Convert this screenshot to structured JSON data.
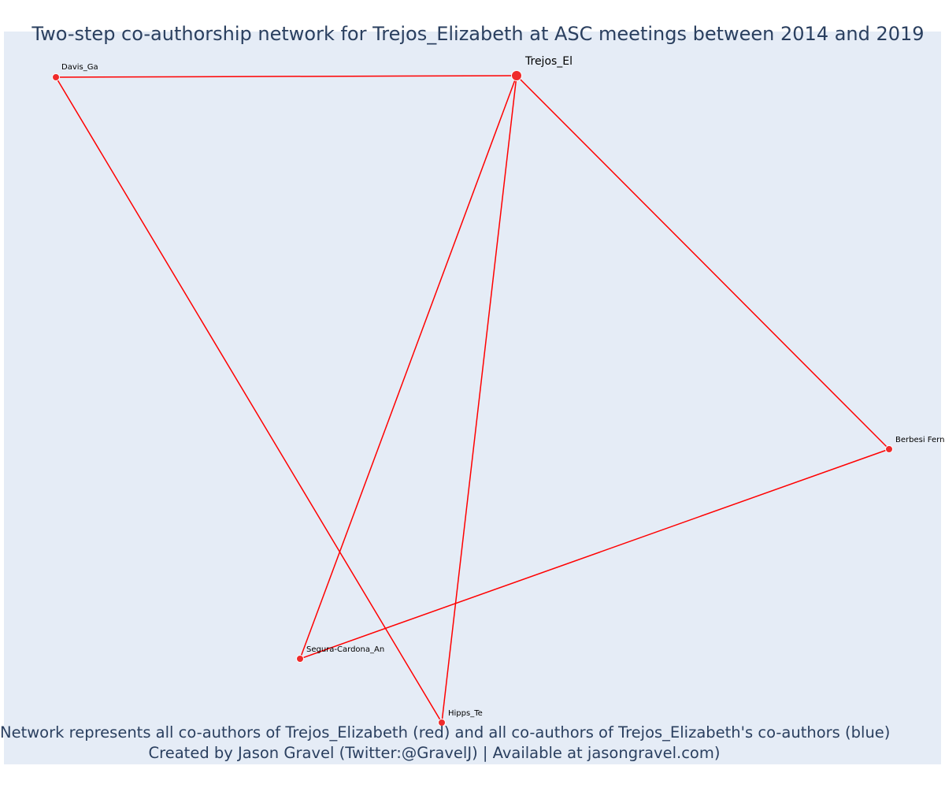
{
  "title": "Two-step co-authorship network for Trejos_Elizabeth at ASC meetings between 2014 and 2019",
  "caption": {
    "line1": "Network represents all co-authors of Trejos_Elizabeth (red) and all co-authors of Trejos_Elizabeth's co-authors (blue)",
    "line2": "Created by Jason Gravel (Twitter:@GravelJ) | Available at jasongravel.com)"
  },
  "colors": {
    "background": "#e5ecf6",
    "edge": "#ff0000",
    "node": "#ef2b2b",
    "node_outline": "#ffffff",
    "text": "#2a3f5f"
  },
  "nodes": [
    {
      "id": "trejos",
      "label": "Trejos_El",
      "role": "focal"
    },
    {
      "id": "davis",
      "label": "Davis_Ga",
      "role": "coauthor"
    },
    {
      "id": "berbesi",
      "label": "Berbesi Fern",
      "role": "coauthor"
    },
    {
      "id": "segura",
      "label": "Segura-Cardona_An",
      "role": "coauthor"
    },
    {
      "id": "hipps",
      "label": "Hipps_Te",
      "role": "coauthor"
    }
  ],
  "edges": [
    {
      "source": "trejos",
      "target": "davis"
    },
    {
      "source": "trejos",
      "target": "berbesi"
    },
    {
      "source": "trejos",
      "target": "segura"
    },
    {
      "source": "trejos",
      "target": "hipps"
    },
    {
      "source": "davis",
      "target": "hipps"
    },
    {
      "source": "segura",
      "target": "berbesi"
    }
  ]
}
